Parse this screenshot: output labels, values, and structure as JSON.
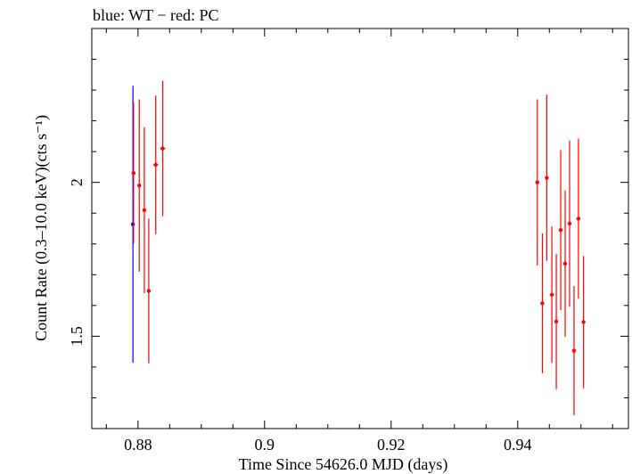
{
  "chart_data": {
    "type": "scatter",
    "title": "blue: WT − red: PC",
    "xlabel": "Time Since 54626.0 MJD (days)",
    "ylabel": "Count Rate (0.3–10.0 keV)(cts s⁻¹)",
    "xlim": [
      0.8727,
      0.9575
    ],
    "ylim": [
      1.2,
      2.5
    ],
    "x_ticks": [
      {
        "value": 0.88,
        "label": "0.88"
      },
      {
        "value": 0.9,
        "label": "0.9"
      },
      {
        "value": 0.92,
        "label": "0.92"
      },
      {
        "value": 0.94,
        "label": "0.94"
      }
    ],
    "y_ticks": [
      {
        "value": 1.5,
        "label": "1.5"
      },
      {
        "value": 2.0,
        "label": "2"
      }
    ],
    "grid": false,
    "series": [
      {
        "color": "#0000ff",
        "points": [
          {
            "x": 0.8792,
            "y": 1.864,
            "yerr": 0.45,
            "xerr": 0.0001
          }
        ]
      },
      {
        "color": "#ff0000",
        "points": [
          {
            "x": 0.8793,
            "y": 2.03,
            "yerr": 0.23,
            "xerr": 0.0003
          },
          {
            "x": 0.8802,
            "y": 1.99,
            "yerr": 0.28,
            "xerr": 0.0003
          },
          {
            "x": 0.881,
            "y": 1.91,
            "yerr": 0.27,
            "xerr": 0.0003
          },
          {
            "x": 0.8817,
            "y": 1.647,
            "yerr": 0.235,
            "xerr": 0.0003
          },
          {
            "x": 0.8828,
            "y": 2.057,
            "yerr": 0.225,
            "xerr": 0.0004
          },
          {
            "x": 0.8839,
            "y": 2.11,
            "yerr": 0.22,
            "xerr": 0.0004
          },
          {
            "x": 0.9431,
            "y": 2.0,
            "yerr": 0.27,
            "xerr": 0.0003
          },
          {
            "x": 0.9439,
            "y": 1.607,
            "yerr": 0.227,
            "xerr": 0.0003
          },
          {
            "x": 0.9446,
            "y": 2.015,
            "yerr": 0.27,
            "xerr": 0.0003
          },
          {
            "x": 0.9454,
            "y": 1.635,
            "yerr": 0.222,
            "xerr": 0.0003
          },
          {
            "x": 0.9461,
            "y": 1.548,
            "yerr": 0.22,
            "xerr": 0.0003
          },
          {
            "x": 0.9468,
            "y": 1.845,
            "yerr": 0.26,
            "xerr": 0.0003
          },
          {
            "x": 0.9475,
            "y": 1.736,
            "yerr": 0.238,
            "xerr": 0.0003
          },
          {
            "x": 0.9482,
            "y": 1.866,
            "yerr": 0.27,
            "xerr": 0.0003
          },
          {
            "x": 0.9489,
            "y": 1.453,
            "yerr": 0.21,
            "xerr": 0.0003
          },
          {
            "x": 0.9496,
            "y": 1.882,
            "yerr": 0.26,
            "xerr": 0.0003
          },
          {
            "x": 0.9504,
            "y": 1.546,
            "yerr": 0.215,
            "xerr": 0.0003
          }
        ]
      }
    ]
  }
}
